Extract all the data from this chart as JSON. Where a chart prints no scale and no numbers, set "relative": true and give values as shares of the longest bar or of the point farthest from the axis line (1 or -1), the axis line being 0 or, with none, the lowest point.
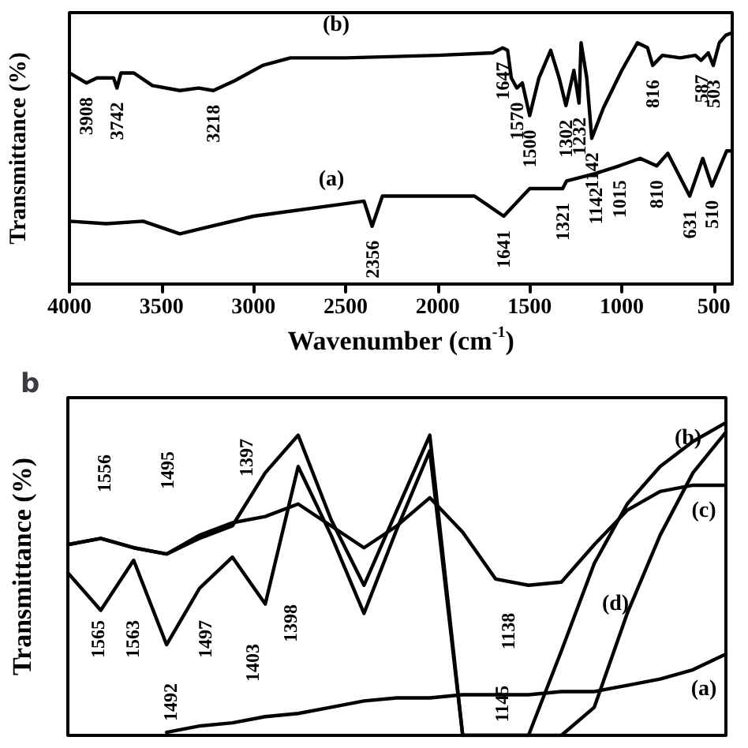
{
  "chart_data": [
    {
      "type": "line",
      "relative": true,
      "xlabel": "Wavenumber (cm$^{-1}$)",
      "ylabel": "Transmittance (%)",
      "xlim": [
        4000,
        400
      ],
      "xticks": [
        4000,
        3500,
        3000,
        2500,
        2000,
        1500,
        1000,
        500
      ],
      "tick_labels": "x",
      "grid": false,
      "marker": "none",
      "line_style": "solid",
      "series": [
        {
          "name": "(b)",
          "color": "#000000",
          "x": [
            4000,
            3908,
            3850,
            3760,
            3742,
            3720,
            3650,
            3550,
            3400,
            3300,
            3218,
            3100,
            2950,
            2800,
            2500,
            2000,
            1700,
            1647,
            1620,
            1600,
            1570,
            1540,
            1500,
            1450,
            1386,
            1340,
            1303,
            1260,
            1232,
            1221,
            1190,
            1163,
            1100,
            1000,
            915,
            860,
            832,
            780,
            683,
            600,
            569,
            530,
            503,
            470,
            435,
            400
          ],
          "values": [
            0.84,
            0.8,
            0.82,
            0.82,
            0.78,
            0.84,
            0.84,
            0.79,
            0.77,
            0.78,
            0.77,
            0.81,
            0.87,
            0.9,
            0.9,
            0.91,
            0.92,
            0.94,
            0.93,
            0.82,
            0.78,
            0.8,
            0.67,
            0.82,
            0.93,
            0.82,
            0.71,
            0.85,
            0.72,
            0.96,
            0.82,
            0.58,
            0.7,
            0.85,
            0.96,
            0.94,
            0.87,
            0.91,
            0.9,
            0.91,
            0.89,
            0.92,
            0.87,
            0.96,
            0.99,
            1.0
          ]
        },
        {
          "name": "(a)",
          "color": "#000000",
          "x": [
            4000,
            3800,
            3600,
            3400,
            3000,
            2500,
            2400,
            2356,
            2300,
            2000,
            1800,
            1641,
            1500,
            1321,
            1300,
            1142,
            1015,
            900,
            810,
            750,
            631,
            560,
            510,
            430,
            400
          ],
          "values": [
            0.25,
            0.24,
            0.25,
            0.2,
            0.27,
            0.32,
            0.33,
            0.23,
            0.35,
            0.35,
            0.35,
            0.27,
            0.38,
            0.38,
            0.41,
            0.44,
            0.47,
            0.5,
            0.47,
            0.52,
            0.35,
            0.5,
            0.39,
            0.53,
            0.53
          ]
        }
      ],
      "annotations": [
        {
          "text": "3908",
          "x": 3908,
          "y": 0.8
        },
        {
          "text": "3742",
          "x": 3742,
          "y": 0.78
        },
        {
          "text": "3218",
          "x": 3218,
          "y": 0.77
        },
        {
          "text": "1647",
          "x": 1647,
          "y": 0.94
        },
        {
          "text": "1570",
          "x": 1570,
          "y": 0.78
        },
        {
          "text": "1500",
          "x": 1500,
          "y": 0.67
        },
        {
          "text": "1302",
          "x": 1303,
          "y": 0.71
        },
        {
          "text": "1232",
          "x": 1232,
          "y": 0.72
        },
        {
          "text": "1142",
          "x": 1163,
          "y": 0.58
        },
        {
          "text": "816",
          "x": 832,
          "y": 0.87
        },
        {
          "text": "587",
          "x": 569,
          "y": 0.89
        },
        {
          "text": "503",
          "x": 503,
          "y": 0.87
        },
        {
          "text": "2356",
          "x": 2356,
          "y": 0.23
        },
        {
          "text": "1641",
          "x": 1641,
          "y": 0.27
        },
        {
          "text": "1321",
          "x": 1321,
          "y": 0.38
        },
        {
          "text": "1142",
          "x": 1142,
          "y": 0.44
        },
        {
          "text": "1015",
          "x": 1015,
          "y": 0.47
        },
        {
          "text": "810",
          "x": 810,
          "y": 0.47
        },
        {
          "text": "631",
          "x": 631,
          "y": 0.35
        },
        {
          "text": "510",
          "x": 510,
          "y": 0.39
        }
      ]
    },
    {
      "type": "line",
      "relative": true,
      "title": "b",
      "ylabel": "Transmittance (%)",
      "categories": [
        null,
        null,
        null,
        null,
        null,
        null,
        null,
        null,
        null,
        null,
        null,
        null,
        null,
        null,
        null,
        null,
        null,
        null,
        null,
        null,
        null
      ],
      "tick_labels": false,
      "grid": false,
      "marker": "none",
      "line_style": "solid",
      "series": [
        {
          "name": "(b)",
          "color": "#000000",
          "values": [
            0.61,
            0.63,
            0.6,
            0.58,
            0.63,
            0.67,
            0.84,
            0.96,
            0.69,
            0.48,
            0.72,
            0.96,
            0,
            0,
            0,
            0.27,
            0.55,
            0.74,
            0.86,
            0.94,
            1.0
          ]
        },
        {
          "name": "(c)",
          "color": "#000000",
          "values": [
            0.61,
            0.63,
            0.6,
            0.58,
            0.64,
            0.68,
            0.7,
            0.74,
            0.67,
            0.6,
            0.67,
            0.76,
            0.65,
            0.5,
            0.48,
            0.49,
            0.61,
            0.72,
            0.78,
            0.8,
            0.8
          ]
        },
        {
          "name": "(d)",
          "color": "#000000",
          "values": [
            0.52,
            0.4,
            0.56,
            0.29,
            0.47,
            0.57,
            0.42,
            0.86,
            0.64,
            0.39,
            0.66,
            0.91,
            0,
            0,
            0,
            0,
            0.09,
            0.39,
            0.64,
            0.84,
            0.97
          ]
        },
        {
          "name": "(a)",
          "color": "#000000",
          "values": [
            null,
            null,
            null,
            0.01,
            0.03,
            0.04,
            0.06,
            0.07,
            0.09,
            0.11,
            0.12,
            0.12,
            0.13,
            0.13,
            0.13,
            0.14,
            0.14,
            0.16,
            0.18,
            0.21,
            0.26
          ]
        }
      ],
      "annotations": [
        "1556",
        "1495",
        "1397",
        "1565",
        "1563",
        "1492",
        "1497",
        "1403",
        "1398",
        "1138",
        "1145"
      ]
    }
  ]
}
